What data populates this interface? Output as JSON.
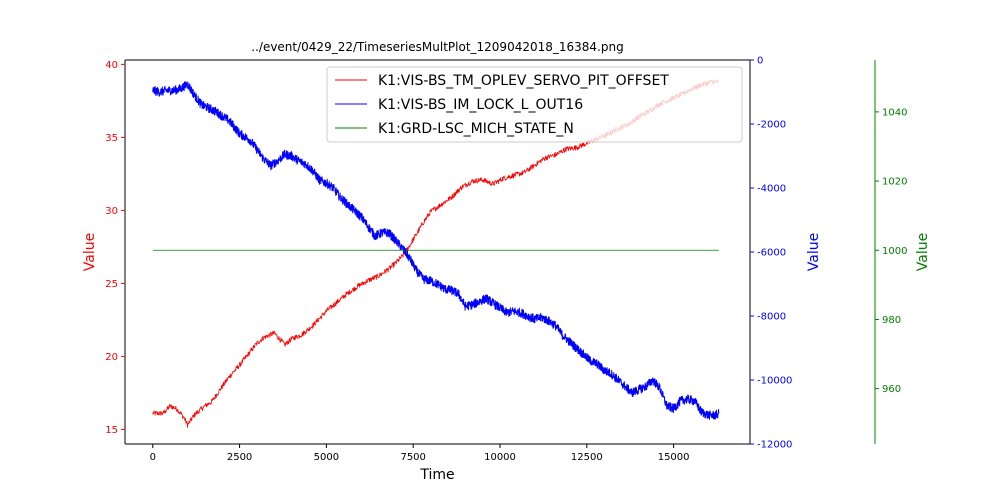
{
  "chart_data": {
    "type": "line",
    "title": "../event/0429_22/TimeseriesMultPlot_1209042018_16384.png",
    "xlabel": "Time",
    "xlim": [
      -800,
      17200
    ],
    "xticks": [
      0,
      2500,
      5000,
      7500,
      10000,
      12500,
      15000
    ],
    "grid": false,
    "legend_position": "top-right",
    "axes": [
      {
        "id": "left",
        "side": "left",
        "label": "Value",
        "color": "#ff0000",
        "ylim": [
          14,
          40.3
        ],
        "ticks": [
          15,
          20,
          25,
          30,
          35,
          40
        ]
      },
      {
        "id": "right1",
        "side": "right",
        "label": "Value",
        "color": "#0000ff",
        "ylim": [
          -12000,
          0
        ],
        "ticks": [
          0,
          -2000,
          -4000,
          -6000,
          -8000,
          -10000,
          -12000
        ]
      },
      {
        "id": "right2",
        "side": "right-outer",
        "label": "Value",
        "color": "#008000",
        "ylim": [
          944,
          1055
        ],
        "ticks": [
          960,
          980,
          1000,
          1020,
          1040
        ]
      }
    ],
    "series": [
      {
        "name": "K1:VIS-BS_TM_OPLEV_SERVO_PIT_OFFSET",
        "axis": "left",
        "color": "#ff0000",
        "noise": 0.18,
        "x": [
          0,
          300,
          500,
          700,
          900,
          1000,
          1200,
          1500,
          1700,
          1900,
          2200,
          2500,
          2800,
          3000,
          3200,
          3500,
          3800,
          4000,
          4300,
          4600,
          4800,
          5000,
          5300,
          5600,
          5900,
          6200,
          6500,
          6800,
          7000,
          7200,
          7400,
          7600,
          7800,
          8000,
          8300,
          8600,
          8900,
          9200,
          9500,
          9800,
          10100,
          10400,
          10700,
          11000,
          11300,
          11600,
          11900,
          12200,
          12500,
          12800,
          13100,
          13400,
          13700,
          14000,
          14300,
          14600,
          14900,
          15200,
          15500,
          15800,
          16100,
          16300
        ],
        "y": [
          16.1,
          16.1,
          16.6,
          16.4,
          15.8,
          15.3,
          16.0,
          16.6,
          16.9,
          17.6,
          18.6,
          19.4,
          20.3,
          20.9,
          21.3,
          21.6,
          20.8,
          21.2,
          21.5,
          22.1,
          22.6,
          23.1,
          23.7,
          24.3,
          24.8,
          25.2,
          25.5,
          26.0,
          26.4,
          26.9,
          27.6,
          28.4,
          29.2,
          29.9,
          30.4,
          30.9,
          31.6,
          32.0,
          32.1,
          31.8,
          32.2,
          32.4,
          32.6,
          33.1,
          33.6,
          33.8,
          34.2,
          34.3,
          34.6,
          34.9,
          35.2,
          35.6,
          35.9,
          36.4,
          36.8,
          37.3,
          37.6,
          37.9,
          38.3,
          38.6,
          38.8,
          38.8
        ]
      },
      {
        "name": "K1:VIS-BS_IM_LOCK_L_OUT16",
        "axis": "right1",
        "color": "#0000ff",
        "noise": 140,
        "x": [
          0,
          200,
          400,
          600,
          800,
          1000,
          1200,
          1400,
          1600,
          1800,
          2000,
          2200,
          2500,
          2800,
          3000,
          3200,
          3400,
          3600,
          3800,
          4000,
          4200,
          4400,
          4600,
          4800,
          5000,
          5200,
          5400,
          5600,
          5800,
          6000,
          6200,
          6400,
          6600,
          6800,
          7000,
          7200,
          7400,
          7600,
          7800,
          8000,
          8200,
          8400,
          8600,
          8800,
          9000,
          9200,
          9400,
          9600,
          9800,
          10000,
          10200,
          10400,
          10600,
          10800,
          11000,
          11200,
          11400,
          11600,
          11800,
          12000,
          12200,
          12400,
          12600,
          12800,
          13000,
          13200,
          13400,
          13600,
          13800,
          14000,
          14200,
          14400,
          14600,
          14800,
          15000,
          15200,
          15400,
          15600,
          15800,
          16000,
          16200,
          16300
        ],
        "y": [
          -950,
          -1000,
          -950,
          -950,
          -900,
          -750,
          -1100,
          -1400,
          -1500,
          -1600,
          -1750,
          -1900,
          -2300,
          -2500,
          -2800,
          -3100,
          -3300,
          -3150,
          -2950,
          -3000,
          -3150,
          -3250,
          -3450,
          -3750,
          -3850,
          -4000,
          -4300,
          -4500,
          -4700,
          -4900,
          -5200,
          -5500,
          -5400,
          -5400,
          -5650,
          -5900,
          -6200,
          -6600,
          -6850,
          -6900,
          -7000,
          -7150,
          -7200,
          -7300,
          -7700,
          -7650,
          -7550,
          -7450,
          -7600,
          -7750,
          -7900,
          -7850,
          -7900,
          -8000,
          -8100,
          -8050,
          -8150,
          -8300,
          -8600,
          -8800,
          -9000,
          -9200,
          -9400,
          -9500,
          -9700,
          -9800,
          -10000,
          -10200,
          -10400,
          -10300,
          -10200,
          -10000,
          -10250,
          -10800,
          -10900,
          -10650,
          -10600,
          -10650,
          -11000,
          -11100,
          -11100,
          -11050
        ]
      },
      {
        "name": "K1:GRD-LSC_MICH_STATE_N",
        "axis": "right2",
        "color": "#008000",
        "noise": 0,
        "x": [
          0,
          16300
        ],
        "y": [
          1000,
          1000
        ]
      }
    ]
  }
}
